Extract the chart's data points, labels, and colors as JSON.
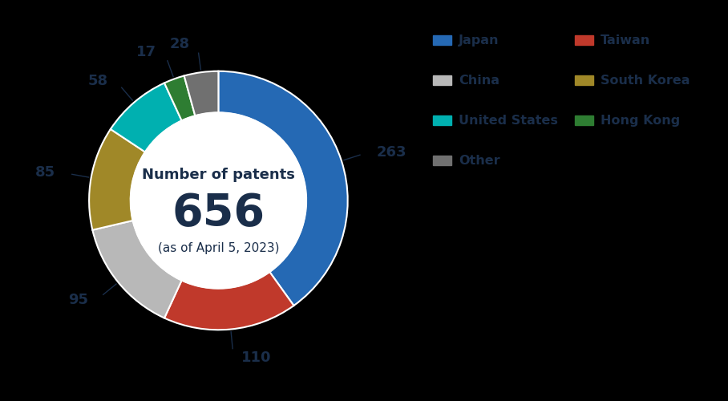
{
  "title_line1": "Number of patents",
  "title_line2": "656",
  "title_line3": "(as of April 5, 2023)",
  "categories": [
    "Japan",
    "Taiwan",
    "China",
    "South Korea",
    "United States",
    "Hong Kong",
    "Other"
  ],
  "values": [
    263,
    110,
    95,
    85,
    58,
    17,
    28
  ],
  "colors": [
    "#2569b4",
    "#c0392b",
    "#b8b8b8",
    "#a08828",
    "#00b0b0",
    "#2e7d32",
    "#707070"
  ],
  "background_color": "#000000",
  "text_color": "#1a2e4a",
  "label_color": "#1a2e4a",
  "donut_width": 0.32,
  "legend_labels_col1": [
    "Japan",
    "China",
    "United States",
    "Other"
  ],
  "legend_labels_col2": [
    "Taiwan",
    "South Korea",
    "Hong Kong"
  ],
  "legend_colors_col1": [
    "#2569b4",
    "#b8b8b8",
    "#00b0b0",
    "#707070"
  ],
  "legend_colors_col2": [
    "#c0392b",
    "#a08828",
    "#2e7d32"
  ]
}
